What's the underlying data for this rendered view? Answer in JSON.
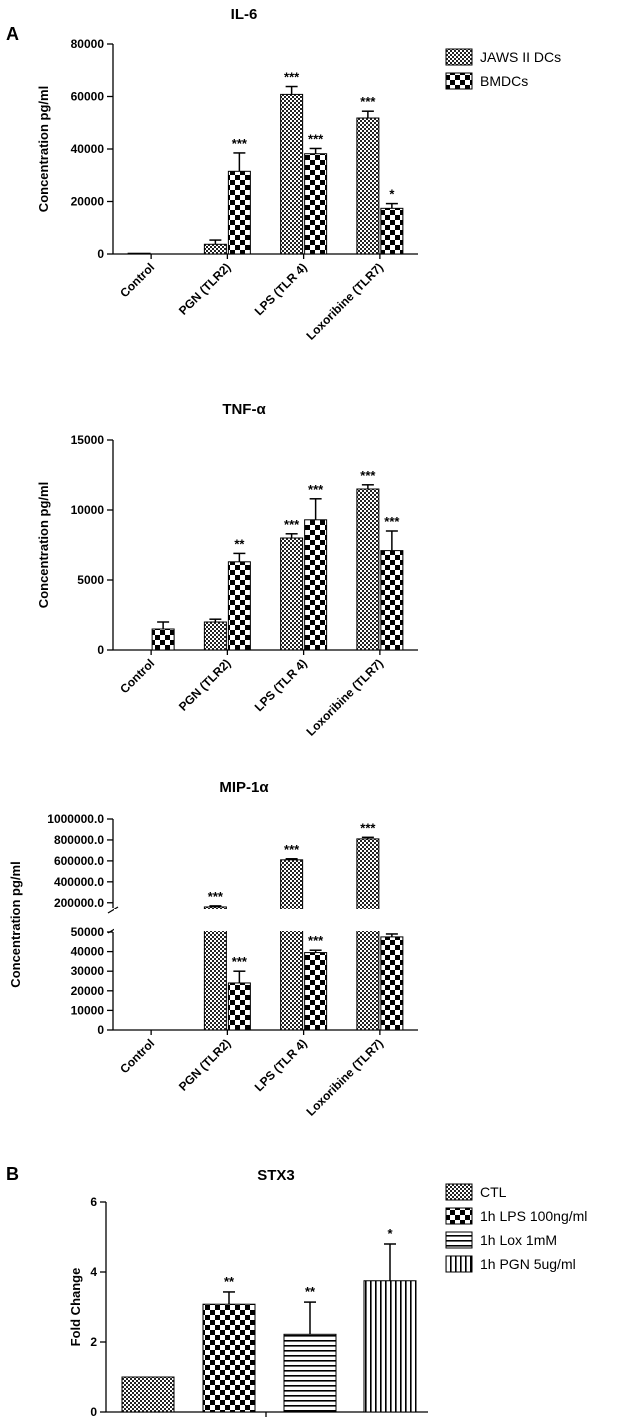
{
  "panels": {
    "a": "A",
    "b": "B"
  },
  "chart_data": [
    {
      "type": "bar",
      "title": "IL-6",
      "ylabel": "Concentration pg/ml",
      "ylim": [
        0,
        80000
      ],
      "yticks": [
        "0",
        "20000",
        "40000",
        "60000",
        "80000"
      ],
      "ytick_values": [
        0,
        20000,
        40000,
        60000,
        80000
      ],
      "categories": [
        "Control",
        "PGN (TLR2)",
        "LPS (TLR 4)",
        "Loxoribine (TLR7)"
      ],
      "legend_position": "top-right",
      "series": [
        {
          "name": "JAWS II DCs",
          "values": [
            300,
            3700,
            60800,
            51800
          ],
          "errors": [
            0,
            1600,
            3000,
            2600
          ],
          "sig": [
            "",
            "",
            "***",
            "***"
          ]
        },
        {
          "name": "BMDCs",
          "values": [
            0,
            31500,
            38200,
            17400
          ],
          "errors": [
            0,
            7000,
            2000,
            1800
          ],
          "sig": [
            "",
            "***",
            "***",
            "*"
          ]
        }
      ]
    },
    {
      "type": "bar",
      "title": "TNF-α",
      "ylabel": "Concentration pg/ml",
      "ylim": [
        0,
        15000
      ],
      "yticks": [
        "0",
        "5000",
        "10000",
        "15000"
      ],
      "ytick_values": [
        0,
        5000,
        10000,
        15000
      ],
      "categories": [
        "Control",
        "PGN (TLR2)",
        "LPS (TLR 4)",
        "Loxoribine (TLR7)"
      ],
      "series": [
        {
          "values": [
            0,
            2000,
            8000,
            11500
          ],
          "errors": [
            0,
            200,
            300,
            300
          ],
          "sig": [
            "",
            "",
            "***",
            "***"
          ]
        },
        {
          "values": [
            1500,
            6300,
            9300,
            7100
          ],
          "errors": [
            500,
            600,
            1500,
            1400
          ],
          "sig": [
            "",
            "**",
            "***",
            "***"
          ]
        }
      ]
    },
    {
      "type": "bar",
      "title": "MIP-1α",
      "ylabel": "Concentration pg/ml",
      "broken_axis": true,
      "lower_ylim": [
        0,
        50000
      ],
      "upper_ylim": [
        150000,
        1000000
      ],
      "yticks_lower": [
        "0",
        "10000",
        "20000",
        "30000",
        "40000",
        "50000"
      ],
      "ytick_values_lower": [
        0,
        10000,
        20000,
        30000,
        40000,
        50000
      ],
      "yticks_upper": [
        "200000.0",
        "400000.0",
        "600000.0",
        "800000.0",
        "1000000.0"
      ],
      "ytick_values_upper": [
        200000,
        400000,
        600000,
        800000,
        1000000
      ],
      "categories": [
        "Control",
        "PGN (TLR2)",
        "LPS (TLR 4)",
        "Loxoribine (TLR7)"
      ],
      "series": [
        {
          "values": [
            0,
            160000,
            610000,
            810000
          ],
          "errors": [
            0,
            10000,
            10000,
            15000
          ],
          "sig": [
            "",
            "***",
            "***",
            "***"
          ]
        },
        {
          "values": [
            0,
            24000,
            39500,
            47500
          ],
          "errors": [
            0,
            6000,
            1200,
            1500
          ],
          "sig": [
            "",
            "***",
            "***",
            "***"
          ]
        }
      ]
    },
    {
      "type": "bar",
      "title": "STX3",
      "ylabel": "Fold Change",
      "ylim": [
        0,
        6
      ],
      "yticks": [
        "0",
        "2",
        "4",
        "6"
      ],
      "ytick_values": [
        0,
        2,
        4,
        6
      ],
      "legend_position": "right",
      "series": [
        {
          "name": "CTL",
          "values": [
            1.0
          ],
          "errors": [
            0
          ],
          "sig": [
            ""
          ]
        },
        {
          "name": "1h LPS 100ng/ml",
          "values": [
            3.08
          ],
          "errors": [
            0.35
          ],
          "sig": [
            "**"
          ]
        },
        {
          "name": "1h Lox 1mM",
          "values": [
            2.22
          ],
          "errors": [
            0.92
          ],
          "sig": [
            "**"
          ]
        },
        {
          "name": "1h PGN 5ug/ml",
          "values": [
            3.75
          ],
          "errors": [
            1.05
          ],
          "sig": [
            "*"
          ]
        }
      ]
    }
  ]
}
